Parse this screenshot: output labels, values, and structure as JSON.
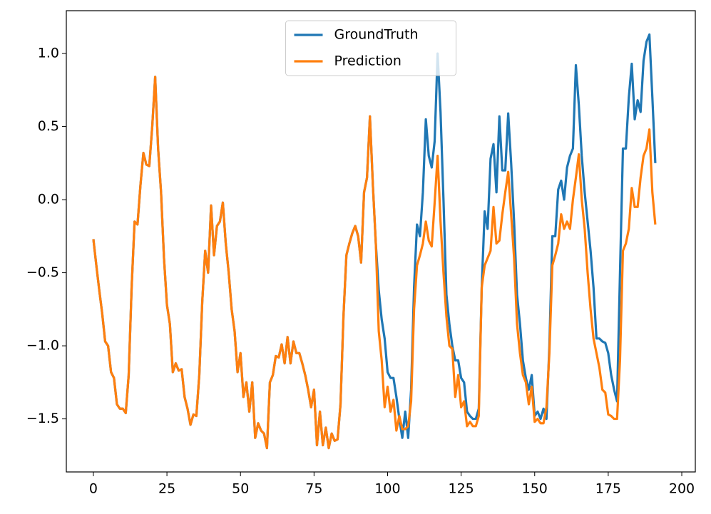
{
  "chart_data": {
    "type": "line",
    "x": [
      0,
      1,
      2,
      3,
      4,
      5,
      6,
      7,
      8,
      9,
      10,
      11,
      12,
      13,
      14,
      15,
      16,
      17,
      18,
      19,
      20,
      21,
      22,
      23,
      24,
      25,
      26,
      27,
      28,
      29,
      30,
      31,
      32,
      33,
      34,
      35,
      36,
      37,
      38,
      39,
      40,
      41,
      42,
      43,
      44,
      45,
      46,
      47,
      48,
      49,
      50,
      51,
      52,
      53,
      54,
      55,
      56,
      57,
      58,
      59,
      60,
      61,
      62,
      63,
      64,
      65,
      66,
      67,
      68,
      69,
      70,
      71,
      72,
      73,
      74,
      75,
      76,
      77,
      78,
      79,
      80,
      81,
      82,
      83,
      84,
      85,
      86,
      87,
      88,
      89,
      90,
      91,
      92,
      93,
      94,
      95,
      96,
      97,
      98,
      99,
      100,
      101,
      102,
      103,
      104,
      105,
      106,
      107,
      108,
      109,
      110,
      111,
      112,
      113,
      114,
      115,
      116,
      117,
      118,
      119,
      120,
      121,
      122,
      123,
      124,
      125,
      126,
      127,
      128,
      129,
      130,
      131,
      132,
      133,
      134,
      135,
      136,
      137,
      138,
      139,
      140,
      141,
      142,
      143,
      144,
      145,
      146,
      147,
      148,
      149,
      150,
      151,
      152,
      153,
      154,
      155,
      156,
      157,
      158,
      159,
      160,
      161,
      162,
      163,
      164,
      165,
      166,
      167,
      168,
      169,
      170,
      171,
      172,
      173,
      174,
      175,
      176,
      177,
      178,
      179,
      180,
      181,
      182,
      183,
      184,
      185,
      186,
      187,
      188,
      189,
      190,
      191
    ],
    "series": [
      {
        "name": "GroundTruth",
        "color": "#1f77b4",
        "values": [
          -0.27,
          -0.45,
          -0.62,
          -0.78,
          -0.97,
          -1.0,
          -1.18,
          -1.22,
          -1.4,
          -1.43,
          -1.43,
          -1.46,
          -1.2,
          -0.6,
          -0.15,
          -0.17,
          0.1,
          0.32,
          0.24,
          0.23,
          0.5,
          0.84,
          0.35,
          0.05,
          -0.4,
          -0.72,
          -0.85,
          -1.18,
          -1.12,
          -1.17,
          -1.16,
          -1.35,
          -1.43,
          -1.54,
          -1.47,
          -1.48,
          -1.2,
          -0.7,
          -0.35,
          -0.5,
          -0.04,
          -0.38,
          -0.18,
          -0.15,
          -0.02,
          -0.3,
          -0.5,
          -0.75,
          -0.9,
          -1.18,
          -1.05,
          -1.35,
          -1.25,
          -1.45,
          -1.25,
          -1.63,
          -1.53,
          -1.58,
          -1.6,
          -1.7,
          -1.25,
          -1.2,
          -1.07,
          -1.08,
          -0.99,
          -1.12,
          -0.94,
          -1.12,
          -0.97,
          -1.05,
          -1.05,
          -1.12,
          -1.2,
          -1.3,
          -1.42,
          -1.3,
          -1.68,
          -1.45,
          -1.68,
          -1.56,
          -1.7,
          -1.6,
          -1.65,
          -1.64,
          -1.4,
          -0.8,
          -0.38,
          -0.3,
          -0.23,
          -0.18,
          -0.25,
          -0.43,
          0.05,
          0.15,
          0.57,
          0.1,
          -0.3,
          -0.62,
          -0.82,
          -0.95,
          -1.18,
          -1.22,
          -1.22,
          -1.35,
          -1.5,
          -1.63,
          -1.45,
          -1.63,
          -1.3,
          -0.6,
          -0.17,
          -0.25,
          0.05,
          0.55,
          0.3,
          0.22,
          0.4,
          1.0,
          0.6,
          0.0,
          -0.65,
          -0.85,
          -1.0,
          -1.1,
          -1.1,
          -1.22,
          -1.25,
          -1.45,
          -1.48,
          -1.5,
          -1.5,
          -1.43,
          -0.6,
          -0.08,
          -0.2,
          0.28,
          0.38,
          0.05,
          0.57,
          0.2,
          0.2,
          0.59,
          0.25,
          -0.15,
          -0.65,
          -0.85,
          -1.1,
          -1.22,
          -1.3,
          -1.2,
          -1.48,
          -1.45,
          -1.5,
          -1.43,
          -1.5,
          -1.0,
          -0.25,
          -0.25,
          0.07,
          0.13,
          0.0,
          0.22,
          0.3,
          0.35,
          0.92,
          0.65,
          0.3,
          0.05,
          -0.15,
          -0.35,
          -0.6,
          -0.95,
          -0.95,
          -0.97,
          -0.98,
          -1.05,
          -1.2,
          -1.3,
          -1.38,
          -0.5,
          0.35,
          0.35,
          0.7,
          0.93,
          0.55,
          0.68,
          0.6,
          0.95,
          1.08,
          1.13,
          0.7,
          0.25
        ]
      },
      {
        "name": "Prediction",
        "color": "#ff7f0e",
        "values": [
          -0.27,
          -0.45,
          -0.62,
          -0.78,
          -0.97,
          -1.0,
          -1.18,
          -1.22,
          -1.4,
          -1.43,
          -1.43,
          -1.46,
          -1.2,
          -0.6,
          -0.15,
          -0.17,
          0.1,
          0.32,
          0.24,
          0.23,
          0.5,
          0.84,
          0.35,
          0.05,
          -0.4,
          -0.72,
          -0.85,
          -1.18,
          -1.12,
          -1.17,
          -1.16,
          -1.35,
          -1.43,
          -1.54,
          -1.47,
          -1.48,
          -1.2,
          -0.7,
          -0.35,
          -0.5,
          -0.04,
          -0.38,
          -0.18,
          -0.15,
          -0.02,
          -0.3,
          -0.5,
          -0.75,
          -0.9,
          -1.18,
          -1.05,
          -1.35,
          -1.25,
          -1.45,
          -1.25,
          -1.63,
          -1.53,
          -1.58,
          -1.6,
          -1.7,
          -1.25,
          -1.2,
          -1.07,
          -1.08,
          -0.99,
          -1.12,
          -0.94,
          -1.12,
          -0.97,
          -1.05,
          -1.05,
          -1.12,
          -1.2,
          -1.3,
          -1.42,
          -1.3,
          -1.68,
          -1.45,
          -1.68,
          -1.56,
          -1.7,
          -1.6,
          -1.65,
          -1.64,
          -1.4,
          -0.8,
          -0.38,
          -0.3,
          -0.23,
          -0.18,
          -0.25,
          -0.43,
          0.05,
          0.15,
          0.57,
          0.1,
          -0.3,
          -0.9,
          -1.1,
          -1.42,
          -1.28,
          -1.45,
          -1.37,
          -1.58,
          -1.48,
          -1.57,
          -1.57,
          -1.55,
          -1.38,
          -0.75,
          -0.45,
          -0.38,
          -0.3,
          -0.15,
          -0.28,
          -0.32,
          -0.02,
          0.3,
          -0.15,
          -0.5,
          -0.8,
          -1.0,
          -1.02,
          -1.35,
          -1.2,
          -1.42,
          -1.38,
          -1.55,
          -1.52,
          -1.55,
          -1.55,
          -1.48,
          -0.6,
          -0.45,
          -0.4,
          -0.35,
          -0.05,
          -0.3,
          -0.28,
          -0.1,
          0.05,
          0.19,
          -0.1,
          -0.4,
          -0.85,
          -1.05,
          -1.2,
          -1.25,
          -1.4,
          -1.28,
          -1.52,
          -1.5,
          -1.53,
          -1.53,
          -1.42,
          -1.05,
          -0.45,
          -0.38,
          -0.3,
          -0.1,
          -0.2,
          -0.15,
          -0.2,
          0.0,
          0.15,
          0.31,
          0.0,
          -0.2,
          -0.5,
          -0.75,
          -0.95,
          -1.05,
          -1.15,
          -1.3,
          -1.32,
          -1.47,
          -1.48,
          -1.5,
          -1.5,
          -1.1,
          -0.35,
          -0.3,
          -0.2,
          0.08,
          -0.05,
          -0.05,
          0.15,
          0.3,
          0.35,
          0.48,
          0.05,
          -0.17
        ]
      }
    ],
    "xlim": [
      -9.2,
      204.6
    ],
    "ylim": [
      -1.863,
      1.293
    ],
    "xticks": [
      0,
      25,
      50,
      75,
      100,
      125,
      150,
      175,
      200
    ],
    "yticks": [
      {
        "value": -1.5,
        "label": "−1.5"
      },
      {
        "value": -1.0,
        "label": "−1.0"
      },
      {
        "value": -0.5,
        "label": "−0.5"
      },
      {
        "value": 0.0,
        "label": "0.0"
      },
      {
        "value": 0.5,
        "label": "0.5"
      },
      {
        "value": 1.0,
        "label": "1.0"
      }
    ],
    "legend": "upper center",
    "grid": false
  }
}
